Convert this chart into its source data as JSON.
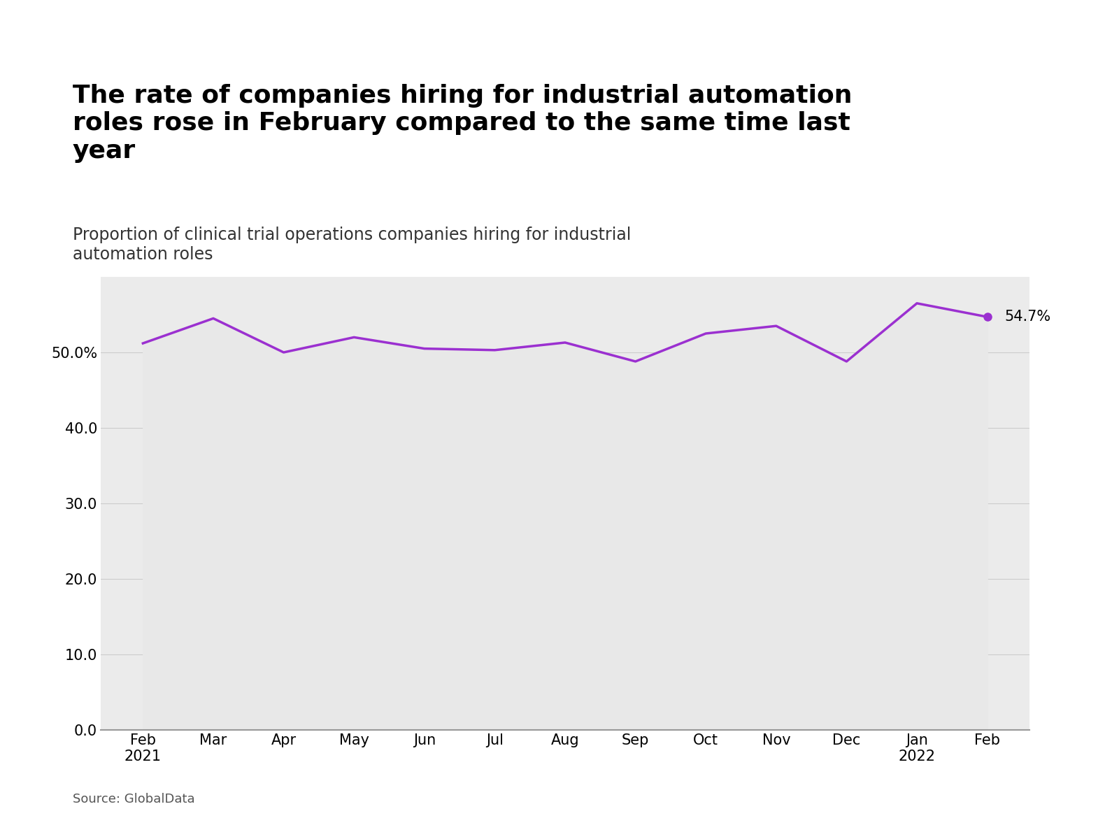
{
  "title_line1": "The rate of companies hiring for industrial automation",
  "title_line2": "roles rose in February compared to the same time last",
  "title_line3": "year",
  "subtitle": "Proportion of clinical trial operations companies hiring for industrial\nautomation roles",
  "source": "Source: GlobalData",
  "x_labels": [
    "Feb\n2021",
    "Mar",
    "Apr",
    "May",
    "Jun",
    "Jul",
    "Aug",
    "Sep",
    "Oct",
    "Nov",
    "Dec",
    "Jan\n2022",
    "Feb"
  ],
  "values": [
    51.2,
    54.5,
    50.0,
    52.0,
    50.5,
    50.3,
    51.3,
    48.8,
    52.5,
    53.5,
    48.8,
    56.5,
    54.7
  ],
  "line_color": "#9b30d0",
  "line_width": 2.5,
  "fill_color": "#e8e8e8",
  "background_color": "#ebebeb",
  "plot_bg_color": "#ebebeb",
  "fig_bg_color": "#ffffff",
  "last_label": "54.7%",
  "ylim": [
    0,
    60
  ],
  "yticks": [
    0,
    10,
    20,
    30,
    40,
    50
  ],
  "ytick_labels": [
    "0.0",
    "10.0",
    "20.0",
    "30.0",
    "40.0",
    "50.0%"
  ],
  "grid_color": "#cccccc",
  "title_fontsize": 26,
  "subtitle_fontsize": 17,
  "tick_fontsize": 15,
  "source_fontsize": 13
}
